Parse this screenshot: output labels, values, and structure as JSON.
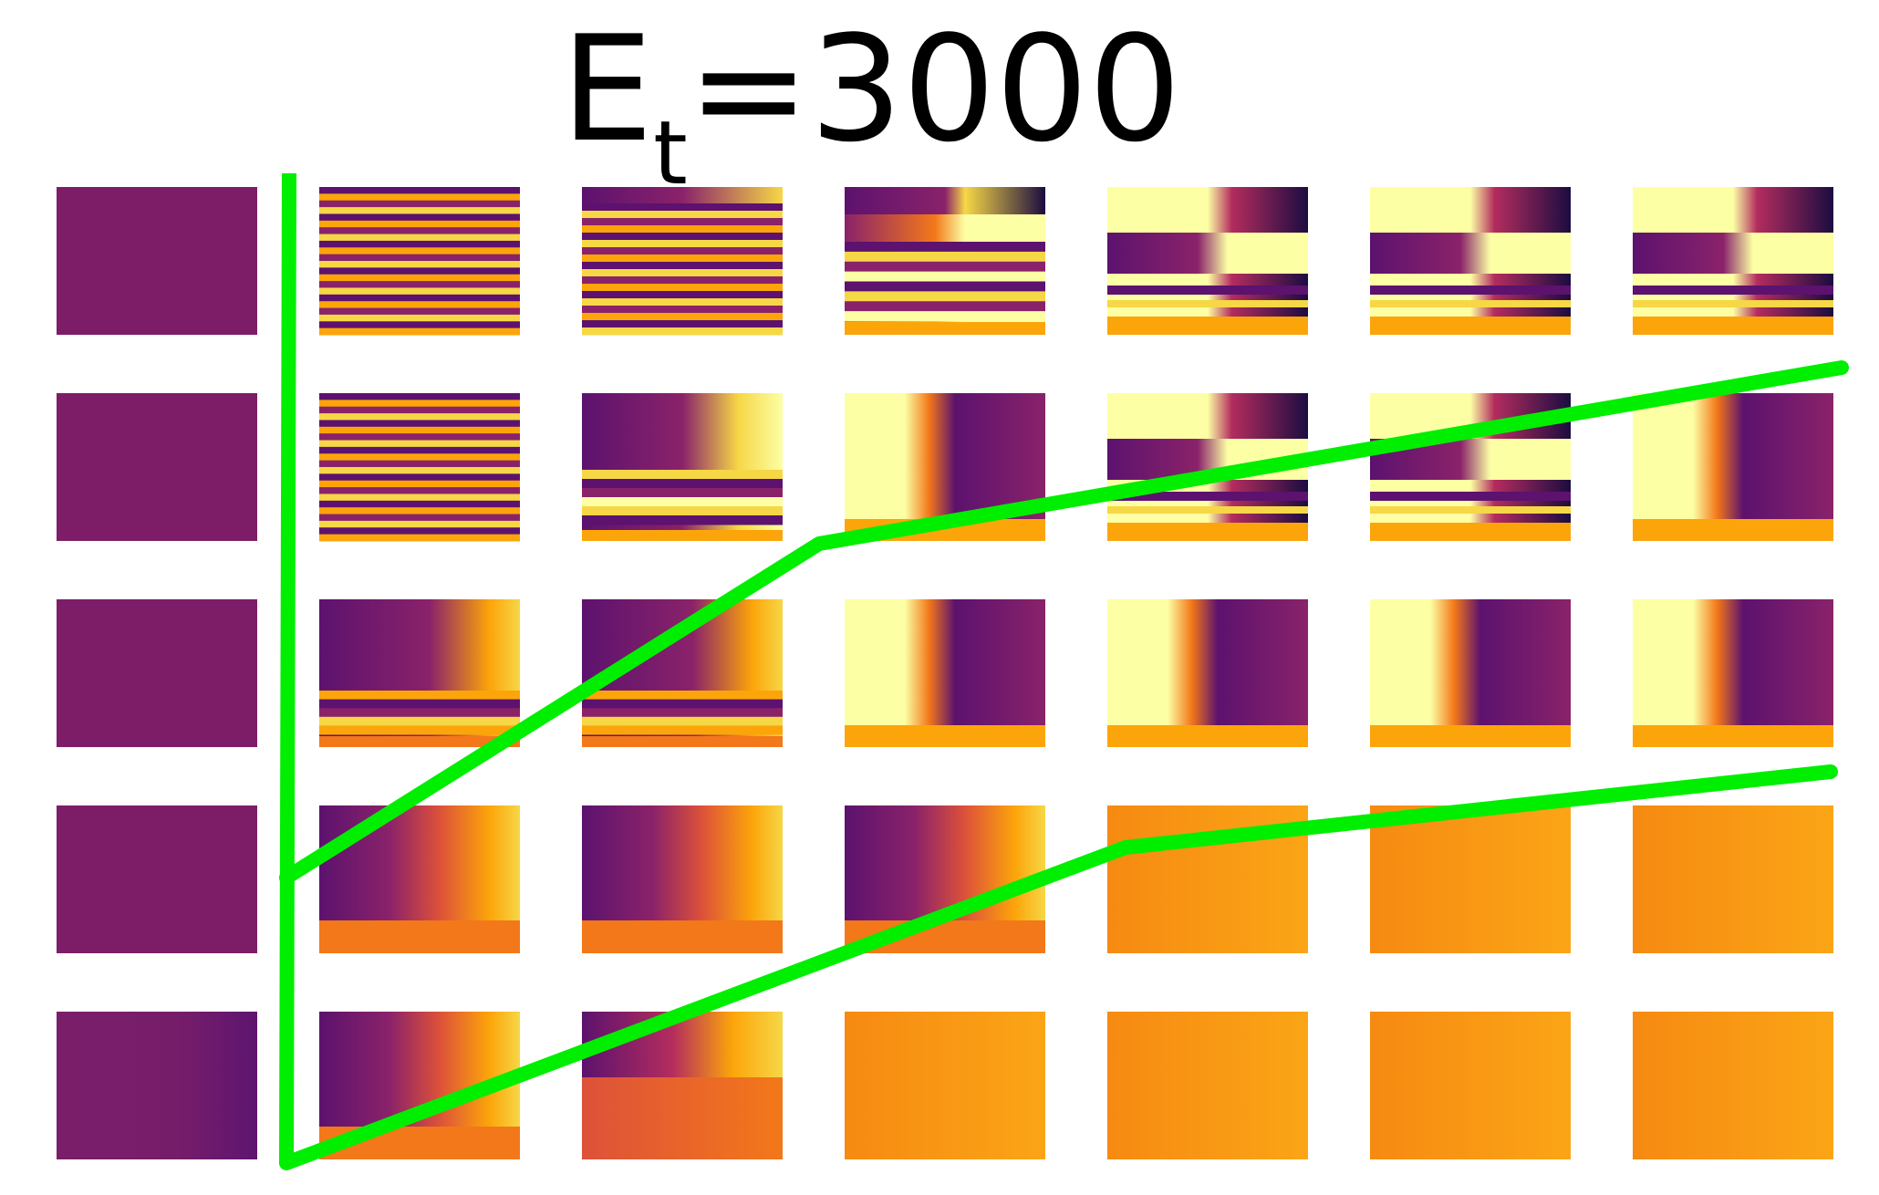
{
  "title": {
    "main": "E",
    "subscript": "t",
    "rest": "=3000"
  },
  "colors": {
    "background": "#ffffff",
    "overlay_line": "#00ee00",
    "uniform_purple": "#7d1d67",
    "inferno_stops": [
      "#1b0c41",
      "#5c126e",
      "#8a226a",
      "#b32c5e",
      "#dd513a",
      "#f37819",
      "#fca50a",
      "#f6d746",
      "#fcffa4"
    ]
  },
  "panels": {
    "rows": 5,
    "cols": 7,
    "patterns": [
      [
        "uniform",
        "stripes-dense",
        "stripes-dense-v",
        "stripes-dark-top",
        "wave-bright",
        "wave-bright",
        "wave-bright"
      ],
      [
        "uniform",
        "stripes-dense",
        "front-stripes",
        "front-bright",
        "wave-bright",
        "wave-bright",
        "front-bright"
      ],
      [
        "uniform",
        "front-stripes-low",
        "front-stripes-low",
        "front-bright",
        "front-bright",
        "front-bright",
        "front-bright"
      ],
      [
        "uniform",
        "gradient-front",
        "gradient-front",
        "gradient-front",
        "flat-orange",
        "flat-orange",
        "flat-orange"
      ],
      [
        "uniform-blend",
        "gradient-front",
        "gradient-front-red",
        "flat-orange",
        "flat-orange",
        "flat-orange",
        "flat-orange"
      ]
    ]
  }
}
